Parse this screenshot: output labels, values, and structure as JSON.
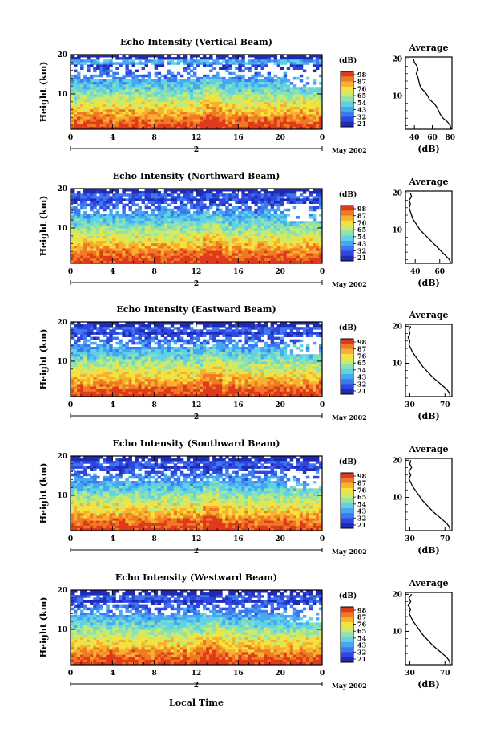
{
  "chart_data": [
    {
      "type": "heatmap",
      "title": "Echo Intensity (Vertical Beam)",
      "ylabel": "Height (km)",
      "y_ticks": [
        "20",
        "10"
      ],
      "x_ticks": [
        "0",
        "4",
        "8",
        "12",
        "16",
        "20",
        "0"
      ],
      "date_label": "2",
      "month_label": "May 2002",
      "xlim": [
        0,
        24
      ],
      "ylim": [
        1,
        20
      ],
      "colorbar": {
        "unit": "(dB)",
        "ticks": [
          "98",
          "87",
          "76",
          "65",
          "54",
          "43",
          "32",
          "21"
        ]
      },
      "profile": {
        "title": "Average",
        "xlabel": "(dB)",
        "x_ticks": [
          "40",
          "60",
          "80"
        ],
        "xlim": [
          30,
          82
        ],
        "y_ticks": [
          "20",
          "10"
        ],
        "points": [
          [
            81,
            1
          ],
          [
            80,
            2
          ],
          [
            77,
            3
          ],
          [
            72,
            4
          ],
          [
            69,
            5
          ],
          [
            67,
            6
          ],
          [
            65,
            7
          ],
          [
            62,
            8
          ],
          [
            57,
            9
          ],
          [
            55,
            10
          ],
          [
            52,
            11
          ],
          [
            48,
            12
          ],
          [
            46,
            13
          ],
          [
            45,
            14
          ],
          [
            44,
            15
          ],
          [
            42,
            16
          ],
          [
            44,
            17
          ],
          [
            43,
            18
          ],
          [
            40,
            19
          ],
          [
            39,
            20
          ]
        ]
      }
    },
    {
      "type": "heatmap",
      "title": "Echo Intensity (Northward Beam)",
      "ylabel": "Height (km)",
      "y_ticks": [
        "20",
        "10"
      ],
      "x_ticks": [
        "0",
        "4",
        "8",
        "12",
        "16",
        "20",
        "0"
      ],
      "date_label": "2",
      "month_label": "May 2002",
      "xlim": [
        0,
        24
      ],
      "ylim": [
        1,
        20
      ],
      "colorbar": {
        "unit": "(dB)",
        "ticks": [
          "98",
          "87",
          "76",
          "65",
          "54",
          "43",
          "32",
          "21"
        ]
      },
      "profile": {
        "title": "Average",
        "xlabel": "(dB)",
        "x_ticks": [
          "40",
          "60"
        ],
        "xlim": [
          32,
          70
        ],
        "y_ticks": [
          "20",
          "10"
        ],
        "points": [
          [
            69,
            1
          ],
          [
            68,
            2
          ],
          [
            65,
            3
          ],
          [
            62,
            4
          ],
          [
            59,
            5
          ],
          [
            56,
            6
          ],
          [
            53,
            7
          ],
          [
            50,
            8
          ],
          [
            47,
            9
          ],
          [
            44,
            10
          ],
          [
            42,
            11
          ],
          [
            40,
            12
          ],
          [
            38,
            13
          ],
          [
            37,
            14
          ],
          [
            36,
            15
          ],
          [
            35,
            16
          ],
          [
            36,
            17
          ],
          [
            35,
            18
          ],
          [
            37,
            19
          ],
          [
            36,
            20
          ]
        ]
      }
    },
    {
      "type": "heatmap",
      "title": "Echo Intensity (Eastward Beam)",
      "ylabel": "Height (km)",
      "y_ticks": [
        "20",
        "10"
      ],
      "x_ticks": [
        "0",
        "4",
        "8",
        "12",
        "16",
        "20",
        "0"
      ],
      "date_label": "2",
      "month_label": "May 2002",
      "xlim": [
        0,
        24
      ],
      "ylim": [
        1,
        20
      ],
      "colorbar": {
        "unit": "(dB)",
        "ticks": [
          "98",
          "87",
          "76",
          "65",
          "54",
          "43",
          "32",
          "21"
        ]
      },
      "profile": {
        "title": "Average",
        "xlabel": "(dB)",
        "x_ticks": [
          "30",
          "70"
        ],
        "xlim": [
          25,
          78
        ],
        "y_ticks": [
          "20",
          "10"
        ],
        "points": [
          [
            76,
            1
          ],
          [
            75,
            2
          ],
          [
            72,
            3
          ],
          [
            67,
            4
          ],
          [
            62,
            5
          ],
          [
            57,
            6
          ],
          [
            53,
            7
          ],
          [
            49,
            8
          ],
          [
            45,
            9
          ],
          [
            42,
            10
          ],
          [
            39,
            11
          ],
          [
            36,
            12
          ],
          [
            33,
            13
          ],
          [
            31,
            14
          ],
          [
            29,
            15
          ],
          [
            30,
            16
          ],
          [
            28,
            17
          ],
          [
            30,
            18
          ],
          [
            29,
            19
          ],
          [
            31,
            20
          ]
        ]
      }
    },
    {
      "type": "heatmap",
      "title": "Echo Intensity (Southward Beam)",
      "ylabel": "Height (km)",
      "y_ticks": [
        "20",
        "10"
      ],
      "x_ticks": [
        "0",
        "4",
        "8",
        "12",
        "16",
        "20",
        "0"
      ],
      "date_label": "2",
      "month_label": "May 2002",
      "xlim": [
        0,
        24
      ],
      "ylim": [
        1,
        20
      ],
      "colorbar": {
        "unit": "(dB)",
        "ticks": [
          "98",
          "87",
          "76",
          "65",
          "54",
          "43",
          "32",
          "21"
        ]
      },
      "profile": {
        "title": "Average",
        "xlabel": "(dB)",
        "x_ticks": [
          "30",
          "70"
        ],
        "xlim": [
          25,
          78
        ],
        "y_ticks": [
          "20",
          "10"
        ],
        "points": [
          [
            76,
            1
          ],
          [
            75,
            2
          ],
          [
            72,
            3
          ],
          [
            67,
            4
          ],
          [
            62,
            5
          ],
          [
            57,
            6
          ],
          [
            53,
            7
          ],
          [
            49,
            8
          ],
          [
            45,
            9
          ],
          [
            42,
            10
          ],
          [
            39,
            11
          ],
          [
            36,
            12
          ],
          [
            33,
            13
          ],
          [
            31,
            14
          ],
          [
            29,
            15
          ],
          [
            31,
            16
          ],
          [
            29,
            17
          ],
          [
            32,
            18
          ],
          [
            30,
            19
          ],
          [
            31,
            20
          ]
        ]
      }
    },
    {
      "type": "heatmap",
      "title": "Echo Intensity (Westward Beam)",
      "ylabel": "Height (km)",
      "y_ticks": [
        "20",
        "10"
      ],
      "x_ticks": [
        "0",
        "4",
        "8",
        "12",
        "16",
        "20",
        "0"
      ],
      "date_label": "2",
      "month_label": "May 2002",
      "xlim": [
        0,
        24
      ],
      "ylim": [
        1,
        20
      ],
      "colorbar": {
        "unit": "(dB)",
        "ticks": [
          "98",
          "87",
          "76",
          "65",
          "54",
          "43",
          "32",
          "21"
        ]
      },
      "profile": {
        "title": "Average",
        "xlabel": "(dB)",
        "x_ticks": [
          "30",
          "70"
        ],
        "xlim": [
          25,
          78
        ],
        "y_ticks": [
          "20",
          "10"
        ],
        "points": [
          [
            76,
            1
          ],
          [
            75,
            2
          ],
          [
            72,
            3
          ],
          [
            67,
            4
          ],
          [
            62,
            5
          ],
          [
            57,
            6
          ],
          [
            53,
            7
          ],
          [
            49,
            8
          ],
          [
            45,
            9
          ],
          [
            42,
            10
          ],
          [
            39,
            11
          ],
          [
            36,
            12
          ],
          [
            33,
            13
          ],
          [
            31,
            14
          ],
          [
            29,
            15
          ],
          [
            31,
            16
          ],
          [
            28,
            17
          ],
          [
            31,
            18
          ],
          [
            29,
            19
          ],
          [
            32,
            20
          ]
        ]
      }
    }
  ],
  "footer": {
    "xlabel": "Local Time"
  }
}
